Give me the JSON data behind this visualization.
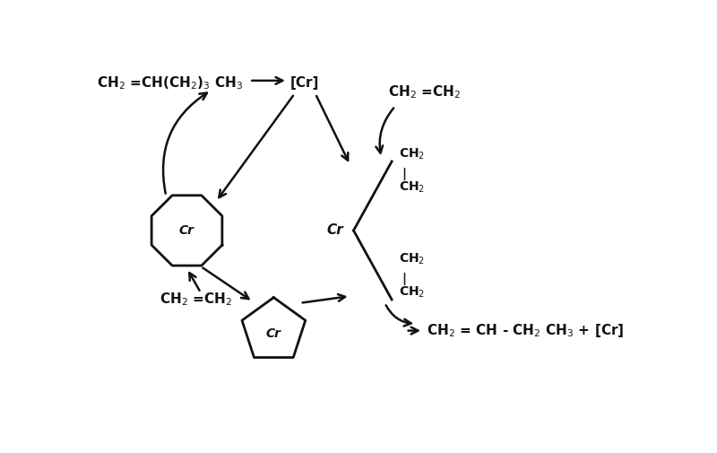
{
  "bg_color": "#ffffff",
  "text_color": "#111111",
  "arrow_color": "#111111",
  "shape_color": "#111111",
  "top_left_product": "CH$_2$ =CH(CH$_2$)$_3$ CH$_3$",
  "top_cr_label": "[Cr]",
  "top_ethylene": "CH$_2$ =CH$_2$",
  "cr_label": "Cr",
  "chain_ch2_1": "CH$_2$",
  "chain_ch2_2": "CH$_2$",
  "chain_ch2_3": "CH$_2$",
  "chain_ch2_4": "CH$_2$",
  "bottom_ethylene": "CH$_2$ =CH$_2$",
  "bottom_product": "CH$_2$ = CH - CH$_2$ CH$_3$ + [Cr]",
  "octagon_cr": "Cr",
  "pentagon_cr": "Cr"
}
